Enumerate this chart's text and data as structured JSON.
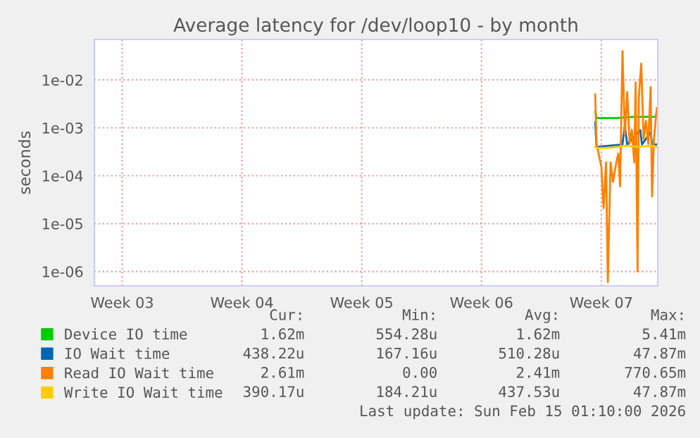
{
  "chart_data": {
    "type": "line",
    "title": "Average latency for /dev/loop10 - by month",
    "ylabel": "seconds",
    "log": "y",
    "grid": true,
    "legend": "bottom left",
    "line_style": "solid",
    "xlim": [
      "2026-01-13T03:00",
      "2026-02-15T01:10"
    ],
    "xticks": [
      {
        "value": "2026-01-14T18:00",
        "label": "Week 03"
      },
      {
        "value": "2026-01-21T18:00",
        "label": "Week 04"
      },
      {
        "value": "2026-01-28T18:00",
        "label": "Week 05"
      },
      {
        "value": "2026-02-04T18:00",
        "label": "Week 06"
      },
      {
        "value": "2026-02-11T18:00",
        "label": "Week 07"
      }
    ],
    "ylim": [
      5e-07,
      0.07
    ],
    "yticks": [
      {
        "value": 1e-06,
        "label": "1e-06"
      },
      {
        "value": 1e-05,
        "label": "1e-05"
      },
      {
        "value": 0.0001,
        "label": "1e-04"
      },
      {
        "value": 0.001,
        "label": "1e-03"
      },
      {
        "value": 0.01,
        "label": "1e-02"
      }
    ],
    "series": [
      {
        "name": "Device IO time",
        "color": "#00cc00",
        "x": [
          "2026-02-11T09:30",
          "2026-02-11T11:20",
          "2026-02-12T15:00",
          "2026-02-13T15:00",
          "2026-02-14T03:00",
          "2026-02-14T22:10",
          "2026-02-14T23:50"
        ],
        "values": [
          0.0022,
          0.0016,
          0.0016,
          0.0017,
          0.0017,
          0.0017,
          0.0022
        ]
      },
      {
        "name": "IO Wait time",
        "color": "#0066b3",
        "x": [
          "2026-02-11T09:30",
          "2026-02-11T11:20",
          "2026-02-12T03:00",
          "2026-02-12T23:40",
          "2026-02-13T03:00",
          "2026-02-13T06:20",
          "2026-02-14T00:40",
          "2026-02-14T03:00",
          "2026-02-14T15:00",
          "2026-02-14T17:20",
          "2026-02-14T23:50"
        ],
        "values": [
          0.0013,
          0.0004,
          0.00042,
          0.00045,
          0.0011,
          0.00045,
          0.0009,
          0.00045,
          0.0008,
          0.00045,
          0.00045
        ]
      },
      {
        "name": "Read IO Wait time",
        "color": "#ff8000",
        "x": [
          "2026-02-11T09:30",
          "2026-02-11T11:20",
          "2026-02-11T18:10",
          "2026-02-11T21:10",
          "2026-02-12T00:40",
          "2026-02-12T03:10",
          "2026-02-12T07:00",
          "2026-02-12T10:30",
          "2026-02-12T15:00",
          "2026-02-12T17:50",
          "2026-02-12T20:20",
          "2026-02-12T23:40",
          "2026-02-13T03:00",
          "2026-02-13T06:20",
          "2026-02-13T09:40",
          "2026-02-13T12:50",
          "2026-02-13T16:10",
          "2026-02-13T18:10",
          "2026-02-13T20:50",
          "2026-02-13T22:40",
          "2026-02-14T02:00",
          "2026-02-14T05:20",
          "2026-02-14T08:30",
          "2026-02-14T11:50",
          "2026-02-14T15:10",
          "2026-02-14T17:10",
          "2026-02-14T19:50",
          "2026-02-14T23:50"
        ],
        "values": [
          0.005,
          0.00046,
          0.00015,
          2.1e-05,
          0.00019,
          6e-07,
          0.00019,
          7.4e-05,
          0.00019,
          0.00029,
          6e-05,
          0.04,
          0.00072,
          0.0056,
          0.00046,
          0.00091,
          0.00019,
          0.0089,
          1e-06,
          0.0045,
          0.022,
          0.00058,
          0.0014,
          0.00046,
          0.0071,
          3.7e-05,
          0.00058,
          0.0026
        ]
      },
      {
        "name": "Write IO Wait time",
        "color": "#ffcc00",
        "x": [
          "2026-02-11T09:30",
          "2026-02-11T11:20",
          "2026-02-12T03:00",
          "2026-02-13T03:00",
          "2026-02-13T22:10",
          "2026-02-14T15:00",
          "2026-02-14T23:50"
        ],
        "values": [
          0.0004,
          0.00038,
          0.00038,
          0.00042,
          0.0004,
          0.00042,
          0.0004
        ]
      }
    ],
    "annotations": [
      "Cur:",
      "Min:",
      "Avg:",
      "Max:",
      "1.62m",
      "554.28u",
      "1.62m",
      "5.41m",
      "438.22u",
      "167.16u",
      "510.28u",
      "47.87m",
      "2.61m",
      "0.00",
      "2.41m",
      "770.65m",
      "390.17u",
      "184.21u",
      "437.53u",
      "47.87m",
      "Last update: Sun Feb 15 01:10:00 2026"
    ]
  }
}
